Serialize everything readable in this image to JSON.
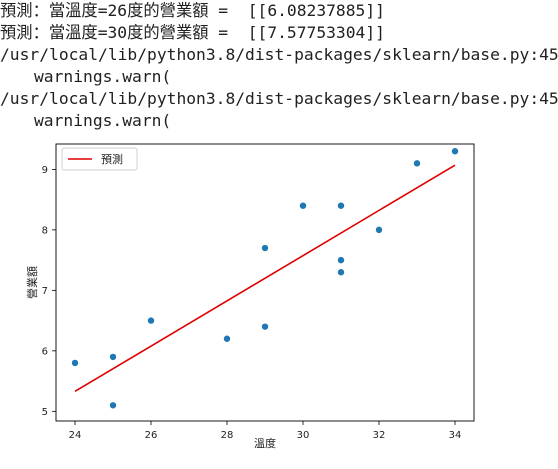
{
  "output": {
    "lines": [
      "預測：當溫度=26度的營業額 =  [[6.08237885]]",
      "預測：當溫度=30度的營業額 =  [[7.57753304]]",
      "/usr/local/lib/python3.8/dist-packages/sklearn/base.py:45",
      "warnings.warn(",
      "/usr/local/lib/python3.8/dist-packages/sklearn/base.py:45",
      "warnings.warn("
    ]
  },
  "chart_data": {
    "type": "scatter",
    "xlabel": "溫度",
    "ylabel": "營業額",
    "xlim": [
      23.5,
      34.5
    ],
    "ylim": [
      4.84,
      9.42
    ],
    "xticks": [
      24,
      26,
      28,
      30,
      32,
      34
    ],
    "yticks": [
      5,
      6,
      7,
      8,
      9
    ],
    "grid": false,
    "legend": {
      "position": "top-left",
      "entries": [
        "預測"
      ]
    },
    "colors": {
      "points": "#1f77b4",
      "line": "#e00000"
    },
    "points": [
      {
        "x": 24,
        "y": 5.8
      },
      {
        "x": 25,
        "y": 5.9
      },
      {
        "x": 25,
        "y": 5.1
      },
      {
        "x": 26,
        "y": 6.5
      },
      {
        "x": 28,
        "y": 6.2
      },
      {
        "x": 29,
        "y": 7.7
      },
      {
        "x": 29,
        "y": 6.4
      },
      {
        "x": 30,
        "y": 8.4
      },
      {
        "x": 31,
        "y": 8.4
      },
      {
        "x": 31,
        "y": 7.5
      },
      {
        "x": 31,
        "y": 7.3
      },
      {
        "x": 32,
        "y": 8.0
      },
      {
        "x": 33,
        "y": 9.1
      },
      {
        "x": 34,
        "y": 9.3
      }
    ],
    "series": [
      {
        "name": "預測",
        "type": "line",
        "x": [
          24,
          34
        ],
        "y": [
          5.33,
          9.07
        ]
      }
    ]
  }
}
